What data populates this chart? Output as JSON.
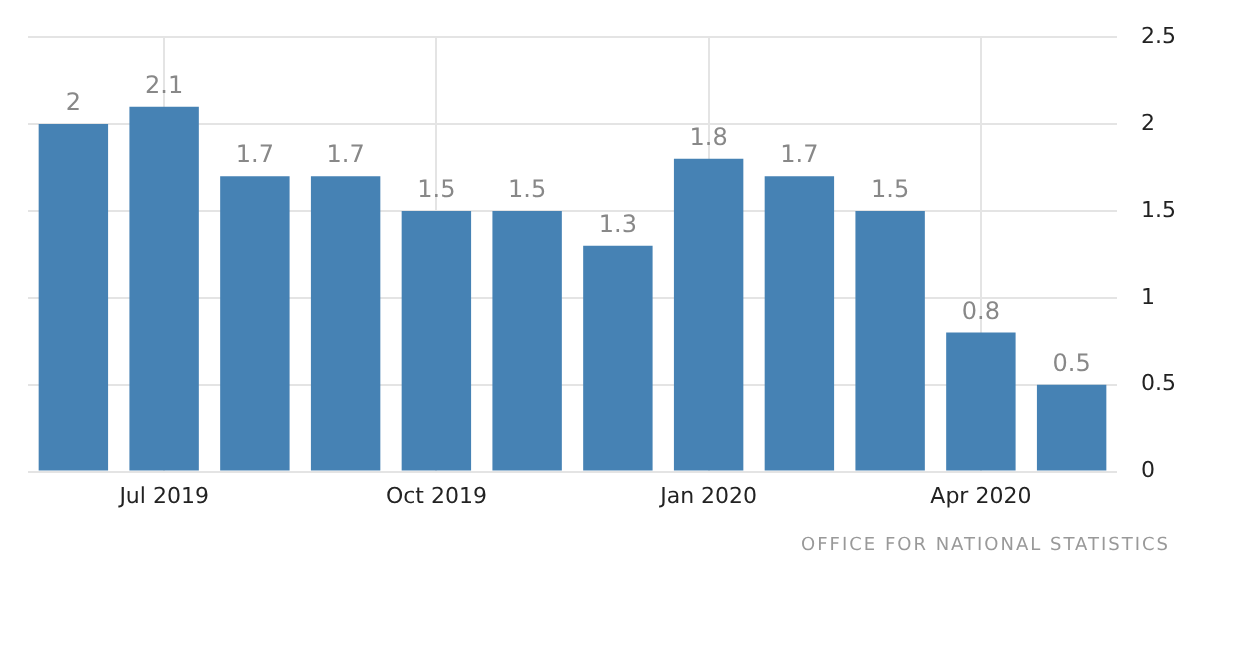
{
  "chart_data": {
    "type": "bar",
    "categories": [
      null,
      "Jul 2019",
      null,
      null,
      "Oct 2019",
      null,
      null,
      "Jan 2020",
      null,
      null,
      "Apr 2020",
      null
    ],
    "values": [
      2,
      2.1,
      1.7,
      1.7,
      1.5,
      1.5,
      1.3,
      1.8,
      1.7,
      1.5,
      0.8,
      0.5
    ],
    "color": "#4682b4",
    "ylim": [
      0,
      2.5
    ],
    "yticks": [
      0,
      0.5,
      1,
      1.5,
      2,
      2.5
    ],
    "grid": true,
    "data_labels": true,
    "annotations": [
      "OFFICE FOR NATIONAL STATISTICS"
    ]
  }
}
